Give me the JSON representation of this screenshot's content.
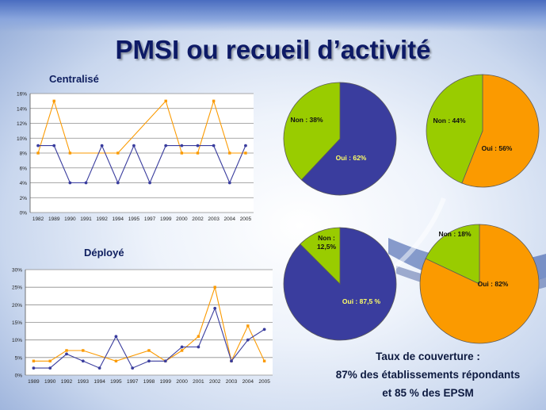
{
  "title": "PMSI ou recueil d’activité",
  "colors": {
    "blue": "#3a3d9e",
    "orange": "#fb9a00",
    "green": "#99cc00"
  },
  "chart_data": [
    {
      "type": "line",
      "title": "Centralisé",
      "categories": [
        "1982",
        "1989",
        "1990",
        "1991",
        "1992",
        "1994",
        "1995",
        "1997",
        "1999",
        "2000",
        "2002",
        "2003",
        "2004",
        "2005"
      ],
      "ylim": [
        0,
        16
      ],
      "ytick_step": 2,
      "ytick_labels": [
        "0%",
        "2%",
        "4%",
        "6%",
        "8%",
        "10%",
        "12%",
        "14%",
        "16%"
      ],
      "grid": true,
      "series": [
        {
          "color": "#3a3d9e",
          "values": [
            9,
            9,
            4,
            4,
            9,
            4,
            9,
            4,
            9,
            9,
            9,
            9,
            4,
            9
          ]
        },
        {
          "color": "#fb9a00",
          "values": [
            8,
            15,
            8,
            null,
            null,
            8,
            null,
            null,
            15,
            8,
            8,
            15,
            8,
            8
          ]
        }
      ]
    },
    {
      "type": "line",
      "title": "Déployé",
      "categories": [
        "1989",
        "1990",
        "1992",
        "1993",
        "1994",
        "1995",
        "1997",
        "1998",
        "1999",
        "2000",
        "2001",
        "2002",
        "2003",
        "2004",
        "2005"
      ],
      "ylim": [
        0,
        30
      ],
      "ytick_step": 5,
      "ytick_labels": [
        "0%",
        "5%",
        "10%",
        "15%",
        "20%",
        "25%",
        "30%"
      ],
      "grid": true,
      "series": [
        {
          "color": "#3a3d9e",
          "values": [
            2,
            2,
            6,
            4,
            2,
            11,
            2,
            4,
            4,
            8,
            8,
            19,
            4,
            10,
            13
          ]
        },
        {
          "color": "#fb9a00",
          "values": [
            4,
            4,
            7,
            7,
            null,
            4,
            null,
            7,
            4,
            7,
            11,
            25,
            4,
            14,
            4
          ]
        }
      ]
    },
    {
      "type": "pie",
      "slices": [
        {
          "label": "Oui : 62%",
          "value": 62,
          "color": "#3a3d9e"
        },
        {
          "label": "Non : 38%",
          "value": 38,
          "color": "#99cc00"
        }
      ]
    },
    {
      "type": "pie",
      "slices": [
        {
          "label": "Oui : 56%",
          "value": 56,
          "color": "#fb9a00"
        },
        {
          "label": "Non : 44%",
          "value": 44,
          "color": "#99cc00"
        }
      ]
    },
    {
      "type": "pie",
      "slices": [
        {
          "label": "Oui : 87,5 %",
          "value": 87.5,
          "color": "#3a3d9e"
        },
        {
          "label": [
            "Non :",
            "12,5%"
          ],
          "value": 12.5,
          "color": "#99cc00"
        }
      ]
    },
    {
      "type": "pie",
      "slices": [
        {
          "label": "Oui : 82%",
          "value": 82,
          "color": "#fb9a00"
        },
        {
          "label": "Non : 18%",
          "value": 18,
          "color": "#99cc00"
        }
      ]
    }
  ],
  "coverage": {
    "line1": "Taux de couverture :",
    "line2": "87% des établissements répondants",
    "line3": "et 85 % des EPSM"
  }
}
